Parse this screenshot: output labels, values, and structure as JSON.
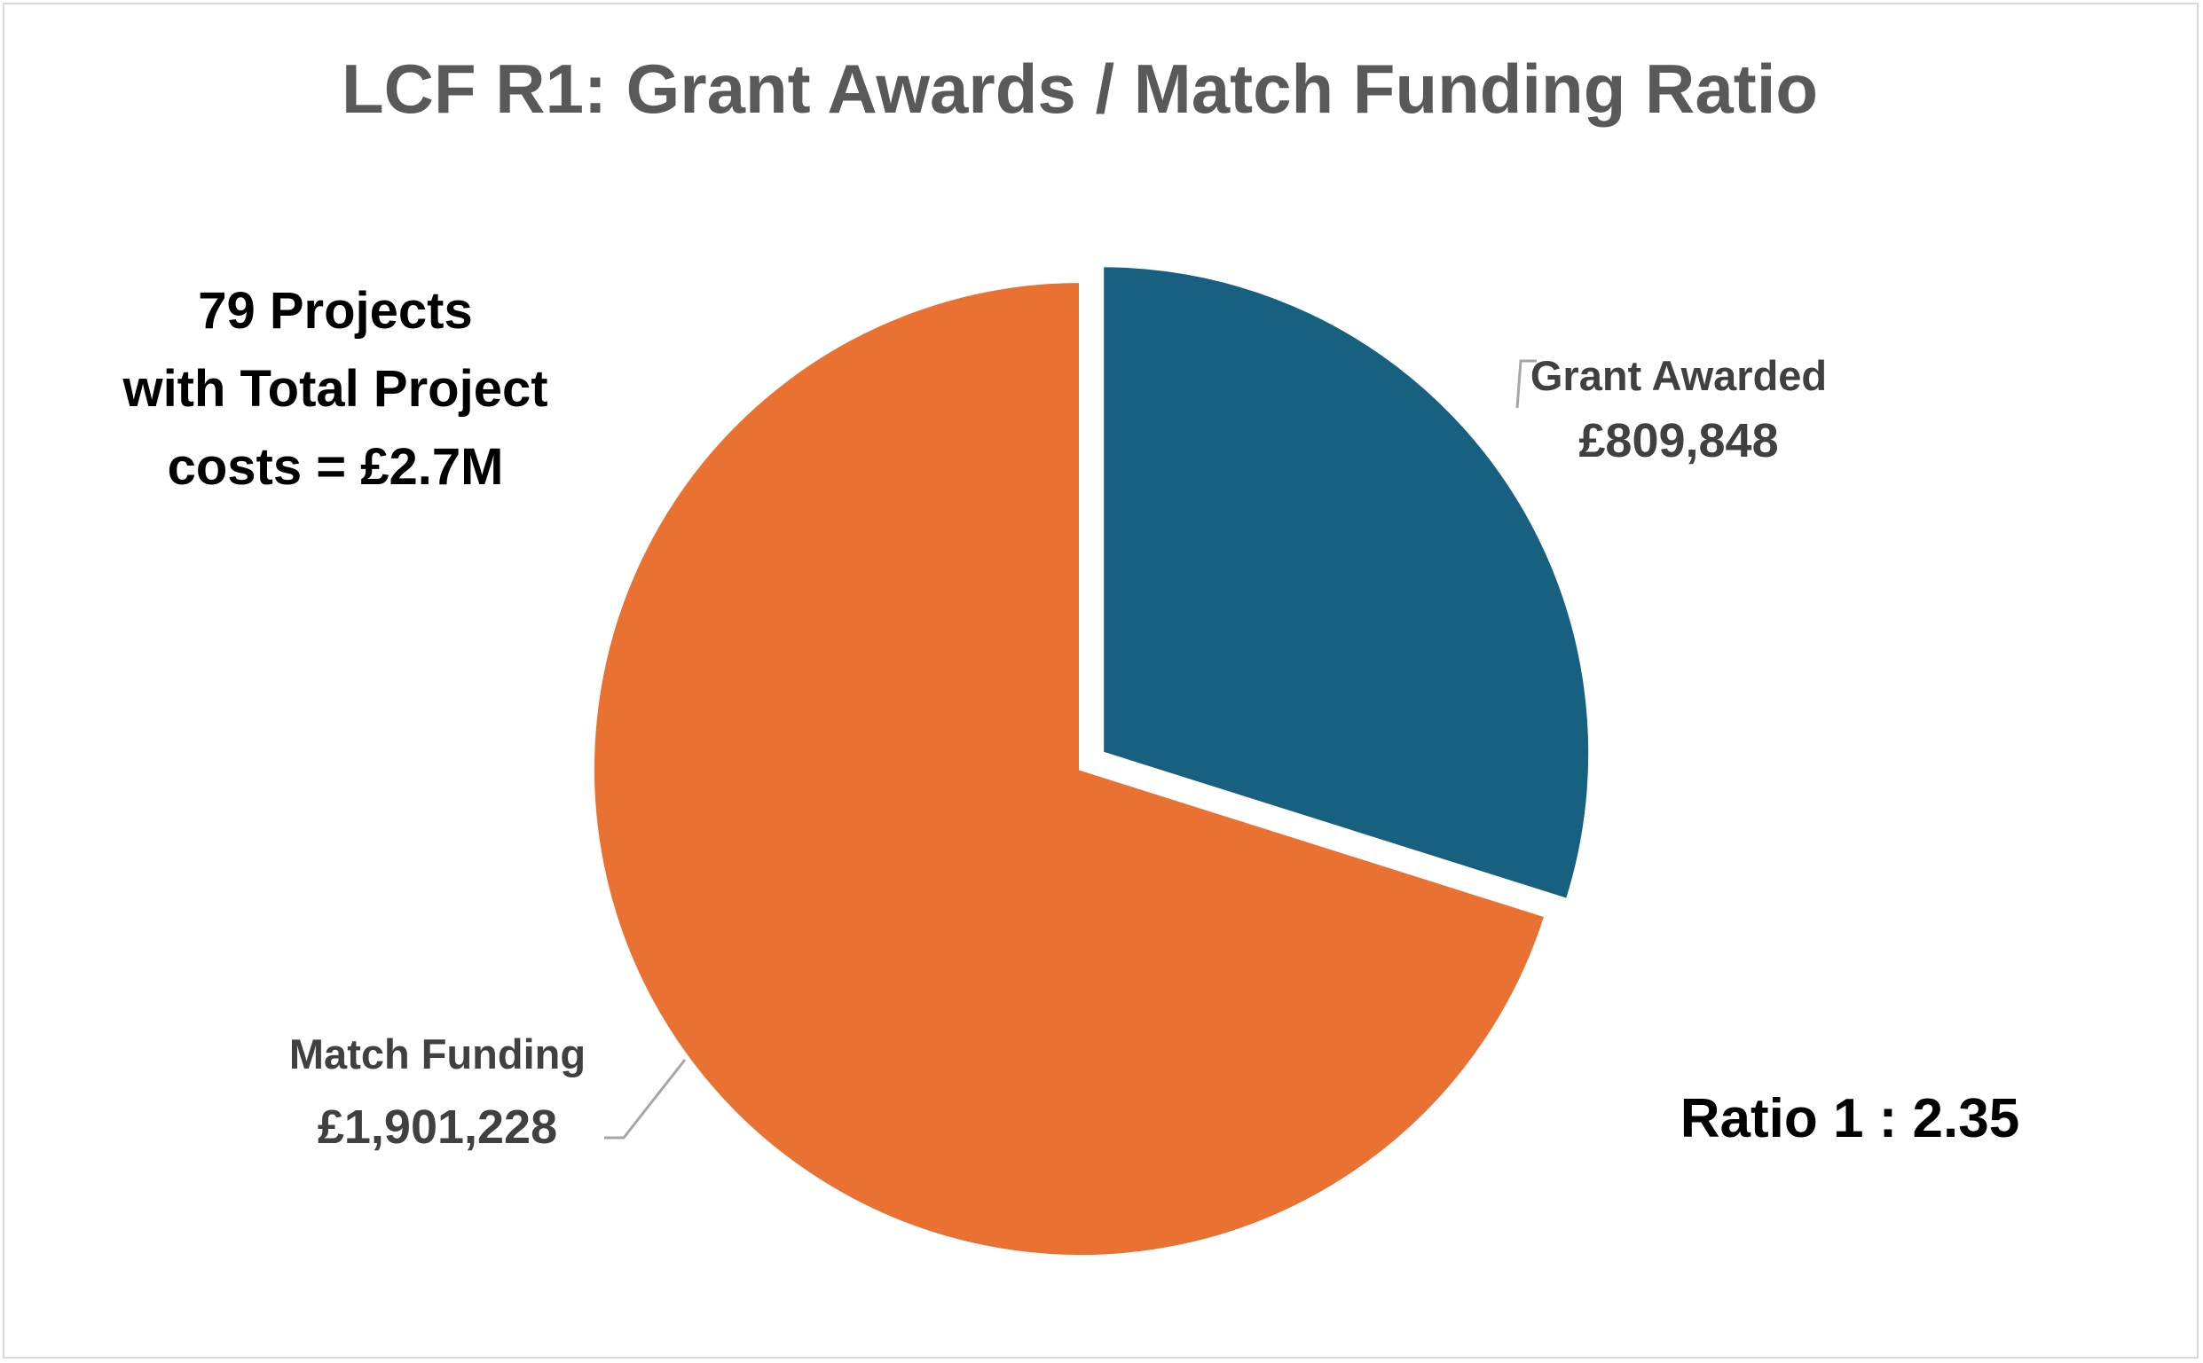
{
  "chart_data": {
    "type": "pie",
    "title": "LCF R1: Grant Awards / Match Funding Ratio",
    "slices": [
      {
        "name": "Grant Awarded",
        "value": 809848,
        "value_label": "£809,848",
        "color": "#17607f",
        "exploded": true
      },
      {
        "name": "Match Funding",
        "value": 1901228,
        "value_label": "£1,901,228",
        "color": "#e97132",
        "exploded": false
      }
    ],
    "annotations": {
      "projects_note": [
        "79 Projects",
        "with Total Project",
        "costs = £2.7M"
      ],
      "ratio": "Ratio 1 : 2.35"
    },
    "legend": "none",
    "data_labels": "outside-with-leader-lines"
  }
}
